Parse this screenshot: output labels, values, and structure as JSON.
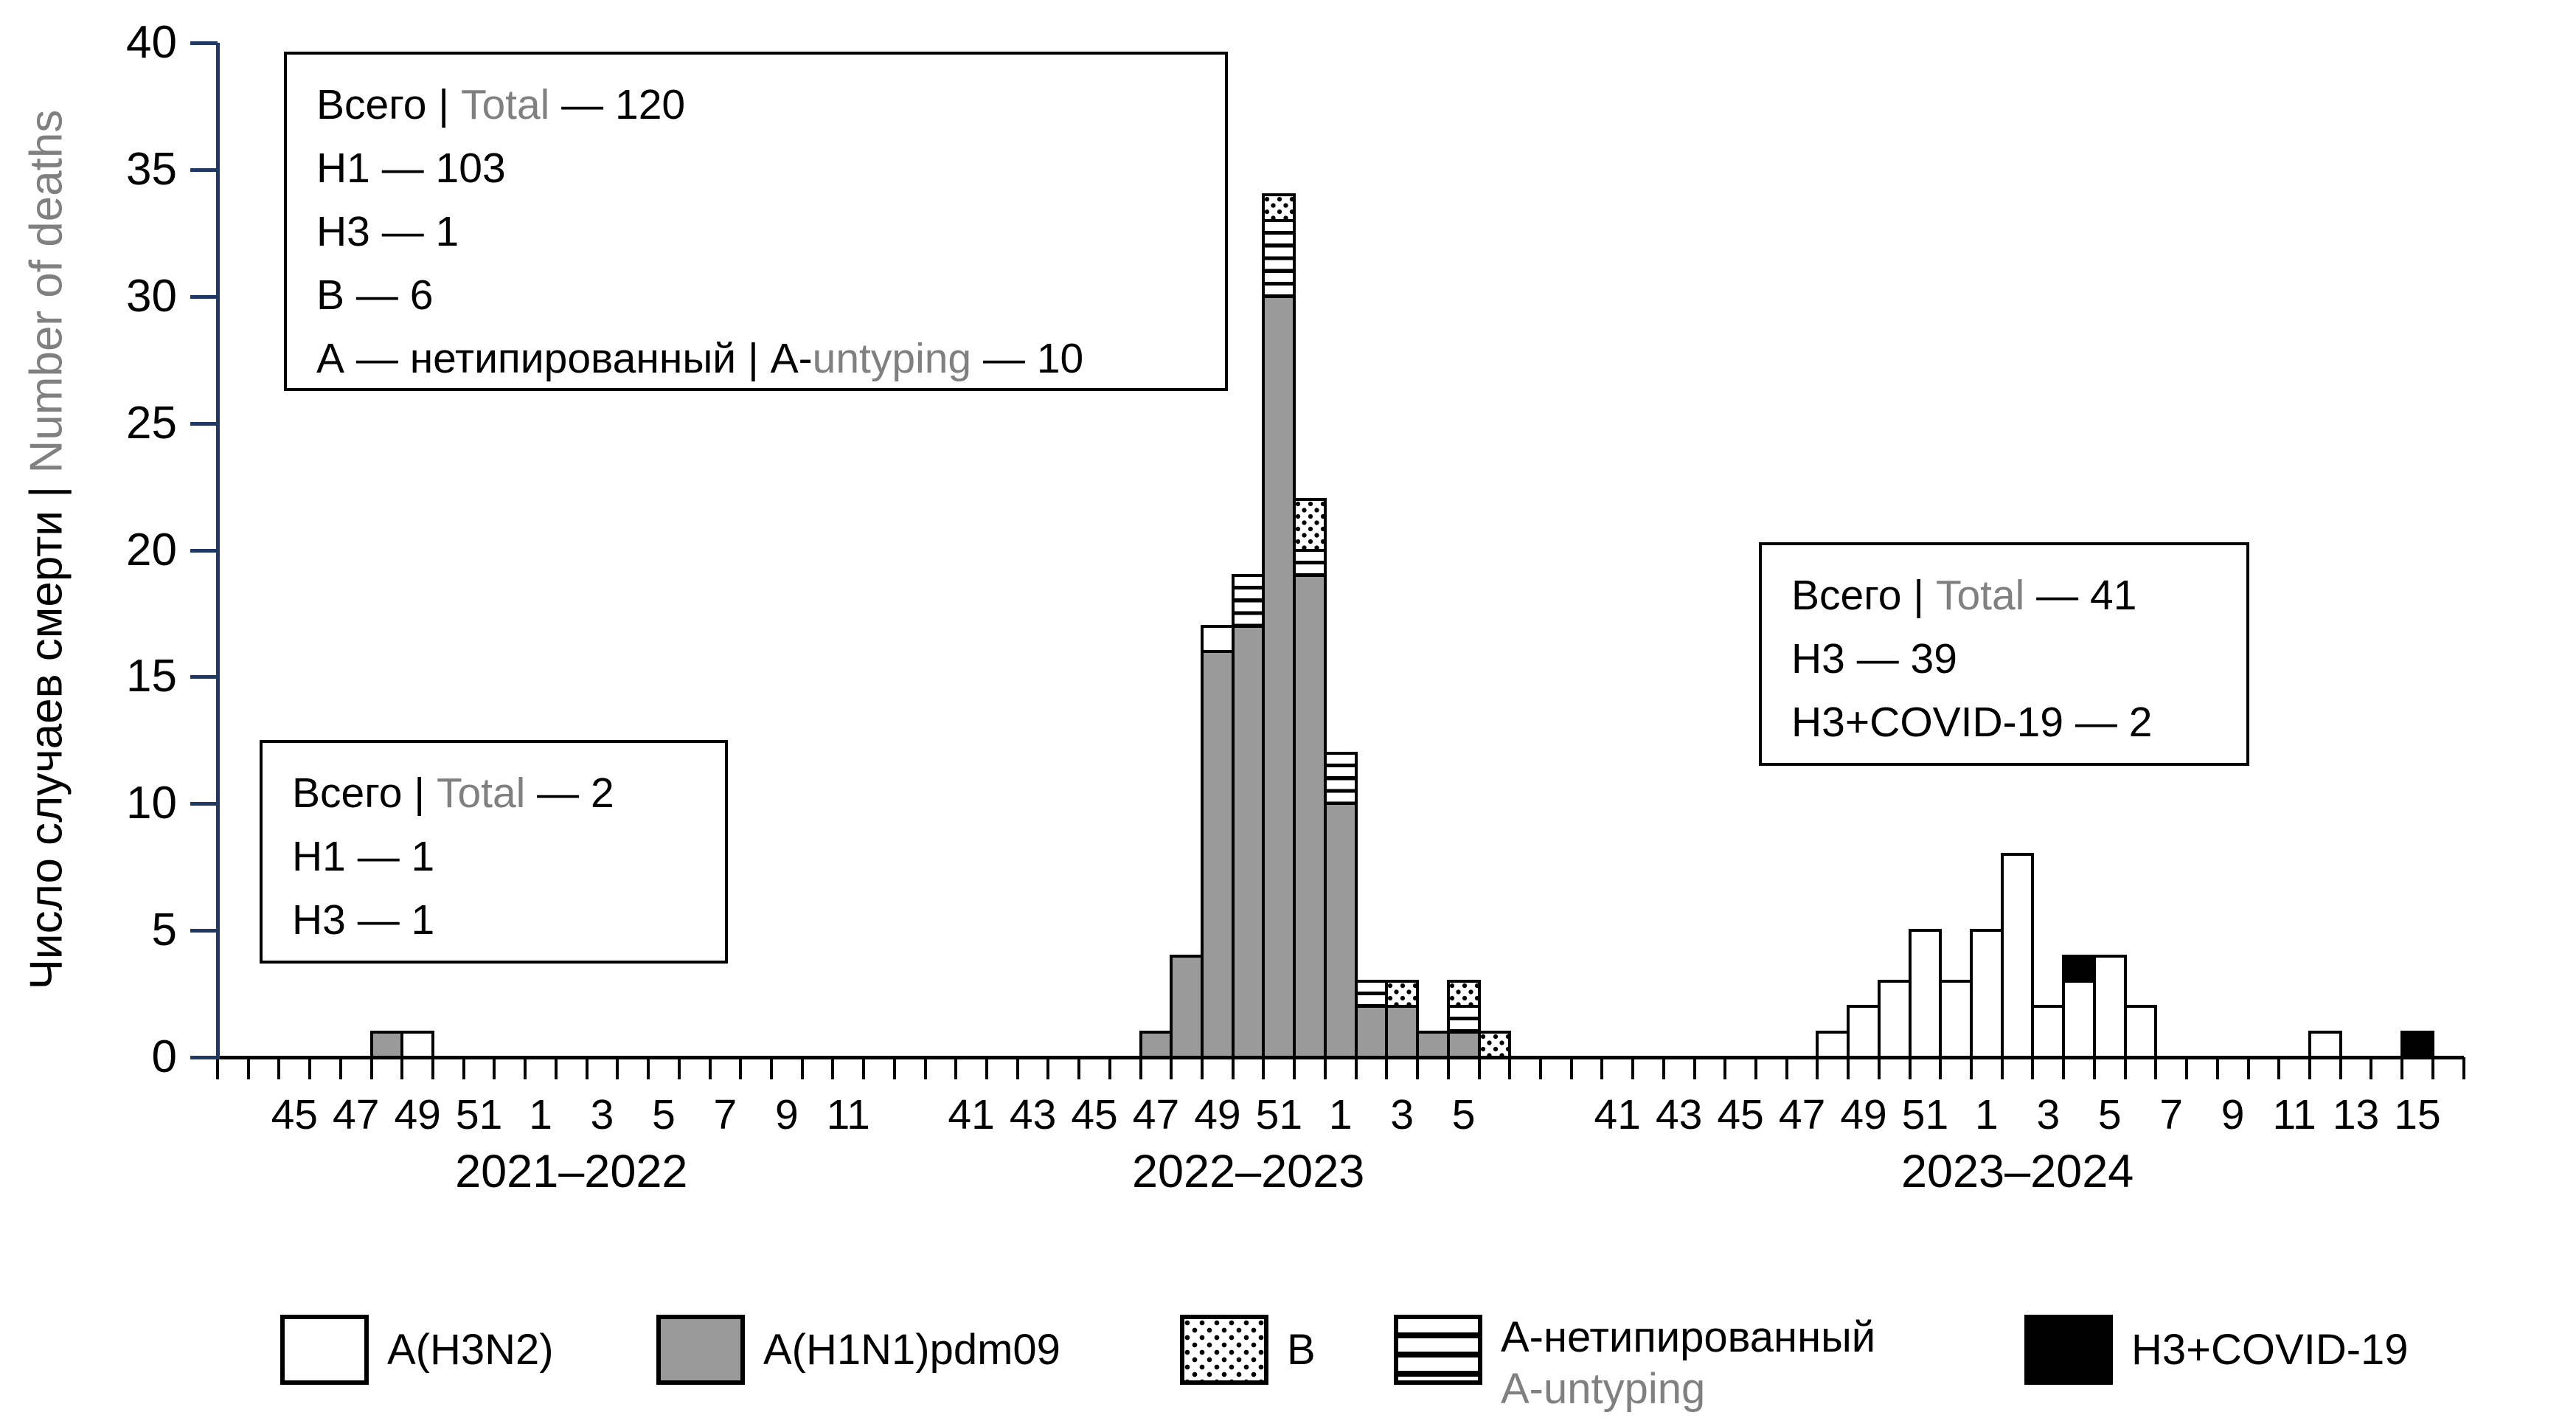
{
  "colors": {
    "bar_gray": "#9A9A9A",
    "axis_blue": "#203864",
    "text_gray": "#808080",
    "black": "#000000",
    "white": "#FFFFFF"
  },
  "y_axis": {
    "label_black": "Число случаев смерти | ",
    "label_gray": "Number of deaths",
    "tick_labels": [
      "0",
      "5",
      "10",
      "15",
      "20",
      "25",
      "30",
      "35",
      "40"
    ]
  },
  "legend": {
    "items": [
      {
        "id": "h3n2",
        "label": "A(H3N2)",
        "pattern": "white"
      },
      {
        "id": "h1n1",
        "label": "A(H1N1)pdm09",
        "pattern": "gray"
      },
      {
        "id": "b",
        "label": "B",
        "pattern": "dots"
      },
      {
        "id": "untyped",
        "label": "А-нетипированный",
        "label2": "A-untyping",
        "pattern": "stripes"
      },
      {
        "id": "covid",
        "label": "H3+COVID-19",
        "pattern": "black"
      }
    ]
  },
  "annotations": [
    {
      "id": "box-2022-2023",
      "lines": [
        [
          {
            "t": "Всего | "
          },
          {
            "t": "Total",
            "gray": true
          },
          {
            "t": " — 120"
          }
        ],
        [
          {
            "t": "H1 — 103"
          }
        ],
        [
          {
            "t": "H3 — 1"
          }
        ],
        [
          {
            "t": "B — 6"
          }
        ],
        [
          {
            "t": "А — нетипированный | A-"
          },
          {
            "t": "untyping",
            "gray": true
          },
          {
            "t": " — 10"
          }
        ]
      ]
    },
    {
      "id": "box-2021-2022",
      "lines": [
        [
          {
            "t": "Всего | "
          },
          {
            "t": "Total",
            "gray": true
          },
          {
            "t": " — 2"
          }
        ],
        [
          {
            "t": "H1 — 1"
          }
        ],
        [
          {
            "t": "H3 — 1"
          }
        ]
      ]
    },
    {
      "id": "box-2023-2024",
      "lines": [
        [
          {
            "t": "Всего | "
          },
          {
            "t": "Total",
            "gray": true
          },
          {
            "t": " — 41"
          }
        ],
        [
          {
            "t": "H3 — 39"
          }
        ],
        [
          {
            "t": "H3+COVID-19 — 2"
          }
        ]
      ]
    }
  ],
  "chart_data": {
    "type": "bar",
    "stacked": true,
    "grid": false,
    "legend_position": "bottom",
    "ylabel": "Число случаев смерти | Number of deaths",
    "ylim": [
      0,
      40
    ],
    "yticks": [
      0,
      5,
      10,
      15,
      20,
      25,
      30,
      35,
      40
    ],
    "series_names": [
      "A(H3N2)",
      "A(H1N1)pdm09",
      "B",
      "A-untyping",
      "H3+COVID-19"
    ],
    "seasons": [
      {
        "label": "2021–2022",
        "weeks": [
          "43",
          "44",
          "45",
          "46",
          "47",
          "48",
          "49",
          "50",
          "51",
          "52",
          "1",
          "2",
          "3",
          "4",
          "5",
          "6",
          "7",
          "8",
          "9",
          "10",
          "11",
          "12",
          "13"
        ],
        "tick_labels": [
          "45",
          "47",
          "49",
          "51",
          "1",
          "3",
          "5",
          "7",
          "9",
          "11"
        ],
        "bars": [
          {
            "week": "48",
            "segments": [
              {
                "series": "A(H1N1)pdm09",
                "value": 1
              }
            ]
          },
          {
            "week": "49",
            "segments": [
              {
                "series": "A(H3N2)",
                "value": 1
              }
            ]
          }
        ]
      },
      {
        "label": "2022–2023",
        "weeks": [
          "40",
          "41",
          "42",
          "43",
          "44",
          "45",
          "46",
          "47",
          "48",
          "49",
          "50",
          "51",
          "52",
          "1",
          "2",
          "3",
          "4",
          "5",
          "6",
          "7",
          "8"
        ],
        "tick_labels": [
          "41",
          "43",
          "45",
          "47",
          "49",
          "51",
          "1",
          "3",
          "5"
        ],
        "bars": [
          {
            "week": "47",
            "segments": [
              {
                "series": "A(H1N1)pdm09",
                "value": 1
              }
            ]
          },
          {
            "week": "48",
            "segments": [
              {
                "series": "A(H1N1)pdm09",
                "value": 4
              }
            ]
          },
          {
            "week": "49",
            "segments": [
              {
                "series": "A(H1N1)pdm09",
                "value": 16
              },
              {
                "series": "A(H3N2)",
                "value": 1
              }
            ]
          },
          {
            "week": "50",
            "segments": [
              {
                "series": "A(H1N1)pdm09",
                "value": 17
              },
              {
                "series": "A-untyping",
                "value": 2
              }
            ]
          },
          {
            "week": "51",
            "segments": [
              {
                "series": "A(H1N1)pdm09",
                "value": 30
              },
              {
                "series": "A-untyping",
                "value": 3
              },
              {
                "series": "B",
                "value": 1
              }
            ]
          },
          {
            "week": "52",
            "segments": [
              {
                "series": "A(H1N1)pdm09",
                "value": 19
              },
              {
                "series": "A-untyping",
                "value": 1
              },
              {
                "series": "B",
                "value": 2
              }
            ]
          },
          {
            "week": "1",
            "segments": [
              {
                "series": "A(H1N1)pdm09",
                "value": 10
              },
              {
                "series": "A-untyping",
                "value": 2
              }
            ]
          },
          {
            "week": "2",
            "segments": [
              {
                "series": "A(H1N1)pdm09",
                "value": 2
              },
              {
                "series": "A-untyping",
                "value": 1
              }
            ]
          },
          {
            "week": "3",
            "segments": [
              {
                "series": "A(H1N1)pdm09",
                "value": 2
              },
              {
                "series": "B",
                "value": 1
              }
            ]
          },
          {
            "week": "4",
            "segments": [
              {
                "series": "A(H1N1)pdm09",
                "value": 1
              }
            ]
          },
          {
            "week": "5",
            "segments": [
              {
                "series": "A(H1N1)pdm09",
                "value": 1
              },
              {
                "series": "A-untyping",
                "value": 1
              },
              {
                "series": "B",
                "value": 1
              }
            ]
          },
          {
            "week": "6",
            "segments": [
              {
                "series": "B",
                "value": 1
              }
            ]
          }
        ]
      },
      {
        "label": "2023–2024",
        "weeks": [
          "40",
          "41",
          "42",
          "43",
          "44",
          "45",
          "46",
          "47",
          "48",
          "49",
          "50",
          "51",
          "52",
          "1",
          "2",
          "3",
          "4",
          "5",
          "6",
          "7",
          "8",
          "9",
          "10",
          "11",
          "12",
          "13",
          "14",
          "15",
          "16"
        ],
        "tick_labels": [
          "41",
          "43",
          "45",
          "47",
          "49",
          "51",
          "1",
          "3",
          "5",
          "7",
          "9",
          "11",
          "13",
          "15"
        ],
        "bars": [
          {
            "week": "48",
            "segments": [
              {
                "series": "A(H3N2)",
                "value": 1
              }
            ]
          },
          {
            "week": "49",
            "segments": [
              {
                "series": "A(H3N2)",
                "value": 2
              }
            ]
          },
          {
            "week": "50",
            "segments": [
              {
                "series": "A(H3N2)",
                "value": 3
              }
            ]
          },
          {
            "week": "51",
            "segments": [
              {
                "series": "A(H3N2)",
                "value": 5
              }
            ]
          },
          {
            "week": "52",
            "segments": [
              {
                "series": "A(H3N2)",
                "value": 3
              }
            ]
          },
          {
            "week": "1",
            "segments": [
              {
                "series": "A(H3N2)",
                "value": 5
              }
            ]
          },
          {
            "week": "2",
            "segments": [
              {
                "series": "A(H3N2)",
                "value": 8
              }
            ]
          },
          {
            "week": "3",
            "segments": [
              {
                "series": "A(H3N2)",
                "value": 2
              }
            ]
          },
          {
            "week": "4",
            "segments": [
              {
                "series": "A(H3N2)",
                "value": 3
              },
              {
                "series": "H3+COVID-19",
                "value": 1
              }
            ]
          },
          {
            "week": "5",
            "segments": [
              {
                "series": "A(H3N2)",
                "value": 4
              }
            ]
          },
          {
            "week": "6",
            "segments": [
              {
                "series": "A(H3N2)",
                "value": 2
              }
            ]
          },
          {
            "week": "12",
            "segments": [
              {
                "series": "A(H3N2)",
                "value": 1
              }
            ]
          },
          {
            "week": "15",
            "segments": [
              {
                "series": "H3+COVID-19",
                "value": 1
              }
            ]
          }
        ]
      }
    ]
  }
}
